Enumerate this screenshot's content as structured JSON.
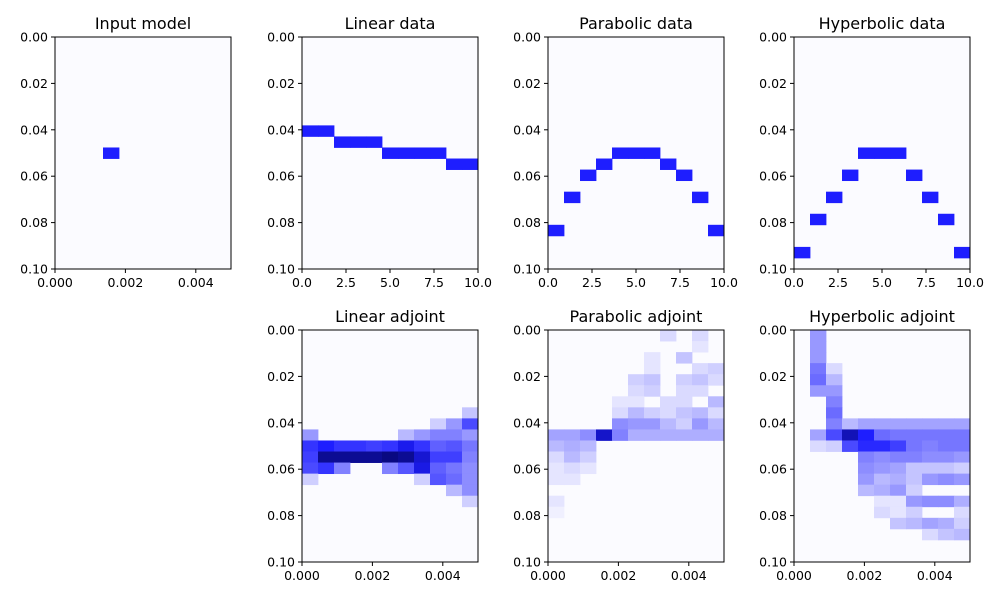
{
  "chart_data": [
    {
      "type": "heatmap",
      "title": "Input model",
      "xlim": [
        0,
        0.005
      ],
      "ylim": [
        0,
        0.1
      ],
      "x_ticks": [
        "0.000",
        "0.002",
        "0.004"
      ],
      "y_ticks": [
        "0.00",
        "0.02",
        "0.04",
        "0.06",
        "0.08",
        "0.10"
      ],
      "nx": 11,
      "ny": 21,
      "colormap": [
        "#fbfbff",
        "#1e1eff",
        "#00004b"
      ],
      "cells": [
        [
          3,
          10,
          1.0
        ]
      ]
    },
    {
      "type": "heatmap",
      "title": "Linear data",
      "xlim": [
        0,
        10
      ],
      "ylim": [
        0,
        0.1
      ],
      "x_ticks": [
        "0.0",
        "2.5",
        "5.0",
        "7.5",
        "10.0"
      ],
      "y_ticks": [
        "0.00",
        "0.02",
        "0.04",
        "0.06",
        "0.08",
        "0.10"
      ],
      "nx": 11,
      "ny": 21,
      "colormap": [
        "#fbfbff",
        "#1e1eff",
        "#00004b"
      ],
      "cells": [
        [
          0,
          8,
          1.0
        ],
        [
          1,
          8,
          1.0
        ],
        [
          2,
          9,
          1.0
        ],
        [
          3,
          9,
          1.0
        ],
        [
          4,
          9,
          1.0
        ],
        [
          5,
          10,
          1.0
        ],
        [
          6,
          10,
          1.0
        ],
        [
          7,
          10,
          1.0
        ],
        [
          8,
          10,
          1.0
        ],
        [
          9,
          11,
          1.0
        ],
        [
          10,
          11,
          1.0
        ]
      ]
    },
    {
      "type": "heatmap",
      "title": "Parabolic data",
      "xlim": [
        0,
        10
      ],
      "ylim": [
        0,
        0.1
      ],
      "x_ticks": [
        "0.0",
        "2.5",
        "5.0",
        "7.5",
        "10.0"
      ],
      "y_ticks": [
        "0.00",
        "0.02",
        "0.04",
        "0.06",
        "0.08",
        "0.10"
      ],
      "nx": 11,
      "ny": 21,
      "colormap": [
        "#fbfbff",
        "#1e1eff",
        "#00004b"
      ],
      "cells": [
        [
          0,
          17,
          1.0
        ],
        [
          1,
          14,
          1.0
        ],
        [
          2,
          12,
          1.0
        ],
        [
          3,
          11,
          1.0
        ],
        [
          4,
          10,
          1.0
        ],
        [
          5,
          10,
          1.0
        ],
        [
          6,
          10,
          1.0
        ],
        [
          7,
          11,
          1.0
        ],
        [
          8,
          12,
          1.0
        ],
        [
          9,
          14,
          1.0
        ],
        [
          10,
          17,
          1.0
        ]
      ]
    },
    {
      "type": "heatmap",
      "title": "Hyperbolic data",
      "xlim": [
        0,
        10
      ],
      "ylim": [
        0,
        0.1
      ],
      "x_ticks": [
        "0.0",
        "2.5",
        "5.0",
        "7.5",
        "10.0"
      ],
      "y_ticks": [
        "0.00",
        "0.02",
        "0.04",
        "0.06",
        "0.08",
        "0.10"
      ],
      "nx": 11,
      "ny": 21,
      "colormap": [
        "#fbfbff",
        "#1e1eff",
        "#00004b"
      ],
      "cells": [
        [
          0,
          19,
          1.0
        ],
        [
          1,
          16,
          1.0
        ],
        [
          2,
          14,
          1.0
        ],
        [
          3,
          12,
          1.0
        ],
        [
          4,
          10,
          1.0
        ],
        [
          5,
          10,
          1.0
        ],
        [
          6,
          10,
          1.0
        ],
        [
          7,
          12,
          1.0
        ],
        [
          8,
          14,
          1.0
        ],
        [
          9,
          16,
          1.0
        ],
        [
          10,
          19,
          1.0
        ]
      ]
    },
    {
      "type": "heatmap",
      "title": "Linear adjoint",
      "xlim": [
        0,
        0.005
      ],
      "ylim": [
        0,
        0.1
      ],
      "x_ticks": [
        "0.000",
        "0.002",
        "0.004"
      ],
      "y_ticks": [
        "0.00",
        "0.02",
        "0.04",
        "0.06",
        "0.08",
        "0.10"
      ],
      "nx": 11,
      "ny": 21,
      "colormap": [
        "#fbfbff",
        "#1e1eff",
        "#00004b"
      ],
      "cells": [
        [
          10,
          7,
          0.25
        ],
        [
          8,
          8,
          0.2
        ],
        [
          9,
          8,
          0.45
        ],
        [
          10,
          8,
          0.8
        ],
        [
          0,
          9,
          0.45
        ],
        [
          6,
          9,
          0.3
        ],
        [
          7,
          9,
          0.45
        ],
        [
          8,
          9,
          0.55
        ],
        [
          9,
          9,
          0.55
        ],
        [
          10,
          9,
          0.45
        ],
        [
          0,
          10,
          0.9
        ],
        [
          1,
          10,
          1.0
        ],
        [
          2,
          10,
          0.9
        ],
        [
          3,
          10,
          0.9
        ],
        [
          4,
          10,
          0.85
        ],
        [
          5,
          10,
          0.9
        ],
        [
          6,
          10,
          1.1
        ],
        [
          7,
          10,
          0.9
        ],
        [
          8,
          10,
          0.7
        ],
        [
          9,
          10,
          0.75
        ],
        [
          10,
          10,
          0.6
        ],
        [
          0,
          11,
          0.85
        ],
        [
          1,
          11,
          1.6
        ],
        [
          2,
          11,
          1.6
        ],
        [
          3,
          11,
          1.6
        ],
        [
          4,
          11,
          1.6
        ],
        [
          5,
          11,
          1.7
        ],
        [
          6,
          11,
          1.6
        ],
        [
          7,
          11,
          1.25
        ],
        [
          8,
          11,
          0.85
        ],
        [
          9,
          11,
          0.85
        ],
        [
          10,
          11,
          0.55
        ],
        [
          0,
          12,
          0.8
        ],
        [
          1,
          12,
          0.9
        ],
        [
          2,
          12,
          0.55
        ],
        [
          5,
          12,
          0.55
        ],
        [
          6,
          12,
          0.75
        ],
        [
          7,
          12,
          1.15
        ],
        [
          8,
          12,
          0.7
        ],
        [
          9,
          12,
          0.6
        ],
        [
          10,
          12,
          0.5
        ],
        [
          0,
          13,
          0.2
        ],
        [
          7,
          13,
          0.2
        ],
        [
          8,
          13,
          0.75
        ],
        [
          9,
          13,
          0.65
        ],
        [
          10,
          13,
          0.5
        ],
        [
          9,
          14,
          0.3
        ],
        [
          10,
          14,
          0.5
        ],
        [
          10,
          15,
          0.2
        ]
      ]
    },
    {
      "type": "heatmap",
      "title": "Parabolic adjoint",
      "xlim": [
        0,
        0.005
      ],
      "ylim": [
        0,
        0.1
      ],
      "x_ticks": [
        "0.000",
        "0.002",
        "0.004"
      ],
      "y_ticks": [
        "0.00",
        "0.02",
        "0.04",
        "0.06",
        "0.08",
        "0.10"
      ],
      "nx": 11,
      "ny": 21,
      "colormap": [
        "#fbfbff",
        "#1e1eff",
        "#00004b"
      ],
      "cells": [
        [
          7,
          0,
          0.15
        ],
        [
          9,
          0,
          0.15
        ],
        [
          9,
          1,
          0.1
        ],
        [
          6,
          2,
          0.1
        ],
        [
          8,
          2,
          0.25
        ],
        [
          6,
          3,
          0.1
        ],
        [
          9,
          3,
          0.15
        ],
        [
          10,
          3,
          0.2
        ],
        [
          5,
          4,
          0.2
        ],
        [
          6,
          4,
          0.25
        ],
        [
          8,
          4,
          0.2
        ],
        [
          9,
          4,
          0.25
        ],
        [
          10,
          4,
          0.15
        ],
        [
          5,
          5,
          0.15
        ],
        [
          6,
          5,
          0.2
        ],
        [
          8,
          5,
          0.15
        ],
        [
          9,
          5,
          0.15
        ],
        [
          4,
          6,
          0.1
        ],
        [
          5,
          6,
          0.1
        ],
        [
          7,
          6,
          0.15
        ],
        [
          8,
          6,
          0.15
        ],
        [
          10,
          6,
          0.3
        ],
        [
          4,
          7,
          0.15
        ],
        [
          5,
          7,
          0.3
        ],
        [
          6,
          7,
          0.2
        ],
        [
          7,
          7,
          0.15
        ],
        [
          8,
          7,
          0.25
        ],
        [
          9,
          7,
          0.3
        ],
        [
          10,
          7,
          0.15
        ],
        [
          4,
          8,
          0.5
        ],
        [
          5,
          8,
          0.45
        ],
        [
          6,
          8,
          0.45
        ],
        [
          7,
          8,
          0.3
        ],
        [
          8,
          8,
          0.2
        ],
        [
          9,
          8,
          0.45
        ],
        [
          10,
          8,
          0.3
        ],
        [
          0,
          9,
          0.4
        ],
        [
          1,
          9,
          0.4
        ],
        [
          2,
          9,
          0.5
        ],
        [
          3,
          9,
          1.3
        ],
        [
          4,
          9,
          0.55
        ],
        [
          5,
          9,
          0.35
        ],
        [
          6,
          9,
          0.35
        ],
        [
          7,
          9,
          0.35
        ],
        [
          8,
          9,
          0.35
        ],
        [
          9,
          9,
          0.35
        ],
        [
          10,
          9,
          0.35
        ],
        [
          0,
          10,
          0.3
        ],
        [
          1,
          10,
          0.35
        ],
        [
          2,
          10,
          0.3
        ],
        [
          0,
          11,
          0.15
        ],
        [
          1,
          11,
          0.3
        ],
        [
          2,
          11,
          0.2
        ],
        [
          0,
          12,
          0.1
        ],
        [
          1,
          12,
          0.15
        ],
        [
          2,
          12,
          0.1
        ],
        [
          0,
          13,
          0.1
        ],
        [
          1,
          13,
          0.1
        ],
        [
          0,
          15,
          0.1
        ],
        [
          0,
          16,
          0.05
        ]
      ]
    },
    {
      "type": "heatmap",
      "title": "Hyperbolic adjoint",
      "xlim": [
        0,
        0.005
      ],
      "ylim": [
        0,
        0.1
      ],
      "x_ticks": [
        "0.000",
        "0.002",
        "0.004"
      ],
      "y_ticks": [
        "0.00",
        "0.02",
        "0.04",
        "0.06",
        "0.08",
        "0.10"
      ],
      "nx": 11,
      "ny": 21,
      "colormap": [
        "#fbfbff",
        "#1e1eff",
        "#00004b"
      ],
      "cells": [
        [
          1,
          0,
          0.45
        ],
        [
          1,
          1,
          0.45
        ],
        [
          1,
          2,
          0.45
        ],
        [
          1,
          3,
          0.6
        ],
        [
          2,
          3,
          0.15
        ],
        [
          1,
          4,
          0.65
        ],
        [
          2,
          4,
          0.3
        ],
        [
          1,
          5,
          0.45
        ],
        [
          2,
          5,
          0.45
        ],
        [
          2,
          6,
          0.55
        ],
        [
          2,
          7,
          0.65
        ],
        [
          2,
          8,
          0.55
        ],
        [
          3,
          8,
          0.3
        ],
        [
          4,
          8,
          0.4
        ],
        [
          5,
          8,
          0.4
        ],
        [
          6,
          8,
          0.4
        ],
        [
          7,
          8,
          0.4
        ],
        [
          8,
          8,
          0.4
        ],
        [
          9,
          8,
          0.4
        ],
        [
          10,
          8,
          0.4
        ],
        [
          1,
          9,
          0.4
        ],
        [
          2,
          9,
          0.8
        ],
        [
          3,
          9,
          1.4
        ],
        [
          4,
          9,
          1.0
        ],
        [
          5,
          9,
          0.65
        ],
        [
          6,
          9,
          0.6
        ],
        [
          7,
          9,
          0.6
        ],
        [
          8,
          9,
          0.6
        ],
        [
          9,
          9,
          0.6
        ],
        [
          10,
          9,
          0.6
        ],
        [
          1,
          10,
          0.15
        ],
        [
          2,
          10,
          0.2
        ],
        [
          3,
          10,
          0.8
        ],
        [
          4,
          10,
          0.95
        ],
        [
          5,
          10,
          0.95
        ],
        [
          6,
          10,
          0.85
        ],
        [
          7,
          10,
          0.6
        ],
        [
          8,
          10,
          0.55
        ],
        [
          9,
          10,
          0.6
        ],
        [
          10,
          10,
          0.6
        ],
        [
          4,
          11,
          0.55
        ],
        [
          5,
          11,
          0.5
        ],
        [
          6,
          11,
          0.55
        ],
        [
          7,
          11,
          0.55
        ],
        [
          8,
          11,
          0.5
        ],
        [
          9,
          11,
          0.5
        ],
        [
          10,
          11,
          0.45
        ],
        [
          4,
          12,
          0.5
        ],
        [
          5,
          12,
          0.45
        ],
        [
          6,
          12,
          0.4
        ],
        [
          7,
          12,
          0.25
        ],
        [
          8,
          12,
          0.25
        ],
        [
          9,
          12,
          0.25
        ],
        [
          10,
          12,
          0.2
        ],
        [
          4,
          13,
          0.45
        ],
        [
          5,
          13,
          0.3
        ],
        [
          6,
          13,
          0.35
        ],
        [
          7,
          13,
          0.25
        ],
        [
          8,
          13,
          0.45
        ],
        [
          9,
          13,
          0.5
        ],
        [
          10,
          13,
          0.45
        ],
        [
          4,
          14,
          0.3
        ],
        [
          5,
          14,
          0.35
        ],
        [
          6,
          14,
          0.45
        ],
        [
          7,
          14,
          0.2
        ],
        [
          5,
          15,
          0.1
        ],
        [
          6,
          15,
          0.1
        ],
        [
          7,
          15,
          0.45
        ],
        [
          8,
          15,
          0.5
        ],
        [
          9,
          15,
          0.5
        ],
        [
          10,
          15,
          0.35
        ],
        [
          5,
          16,
          0.15
        ],
        [
          6,
          16,
          0.1
        ],
        [
          7,
          16,
          0.2
        ],
        [
          10,
          16,
          0.15
        ],
        [
          6,
          17,
          0.25
        ],
        [
          7,
          17,
          0.3
        ],
        [
          8,
          17,
          0.4
        ],
        [
          9,
          17,
          0.35
        ],
        [
          10,
          17,
          0.2
        ],
        [
          8,
          18,
          0.15
        ],
        [
          9,
          18,
          0.25
        ],
        [
          10,
          18,
          0.3
        ]
      ]
    }
  ]
}
